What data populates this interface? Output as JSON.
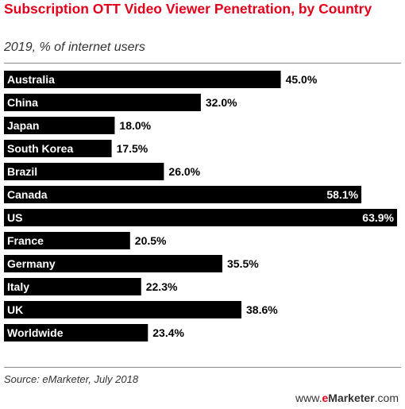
{
  "header": {
    "title": "Subscription OTT Video Viewer Penetration, by Country",
    "subtitle": "2019, % of internet users"
  },
  "footer": {
    "source": "Source: eMarketer, July 2018",
    "brand_prefix": "www.",
    "brand_e": "e",
    "brand_rest": "Marketer",
    "brand_suffix": ".com"
  },
  "colors": {
    "bar": "#000000",
    "title": "#e4001b"
  },
  "chart_data": {
    "type": "bar",
    "orientation": "horizontal",
    "title": "Subscription OTT Video Viewer Penetration, by Country",
    "subtitle": "2019, % of internet users",
    "categories": [
      "Australia",
      "China",
      "Japan",
      "South Korea",
      "Brazil",
      "Canada",
      "US",
      "France",
      "Germany",
      "Italy",
      "UK",
      "Worldwide"
    ],
    "values": [
      45.0,
      32.0,
      18.0,
      17.5,
      26.0,
      58.1,
      63.9,
      20.5,
      35.5,
      22.3,
      38.6,
      23.4
    ],
    "value_labels": [
      "45.0%",
      "32.0%",
      "18.0%",
      "17.5%",
      "26.0%",
      "58.1%",
      "63.9%",
      "20.5%",
      "35.5%",
      "22.3%",
      "38.6%",
      "23.4%"
    ],
    "xlim": [
      0,
      63.9
    ],
    "grid": false,
    "legend": "none"
  }
}
